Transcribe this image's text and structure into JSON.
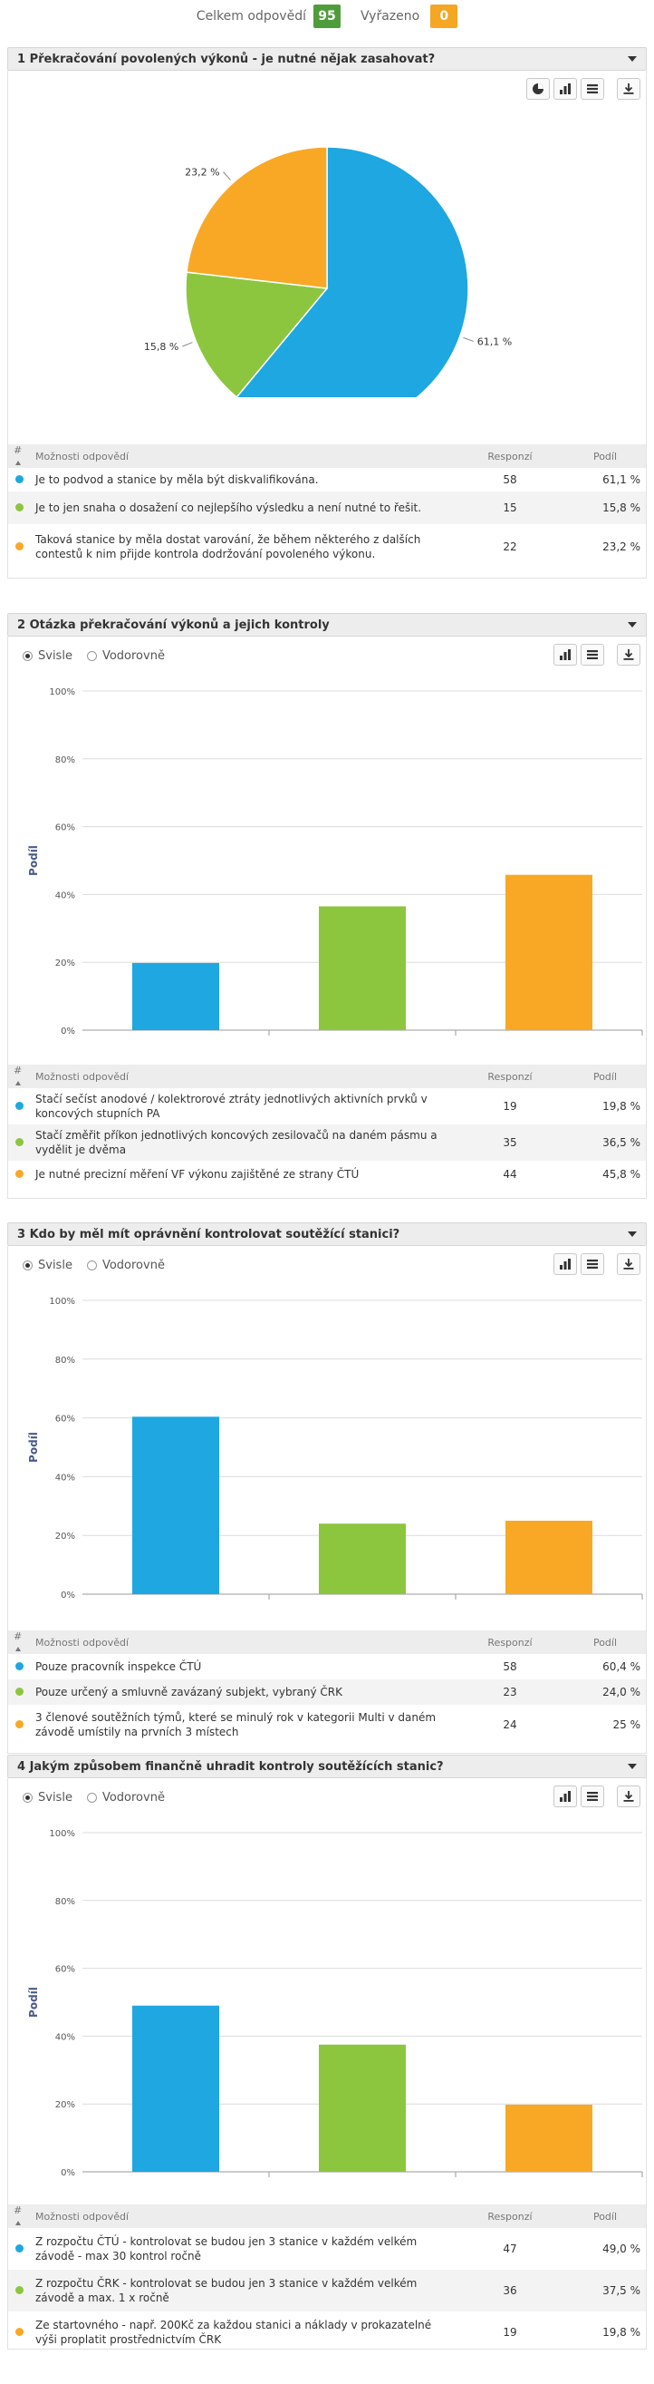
{
  "summary": {
    "total_label": "Celkem odpovědí",
    "total_value": "95",
    "excluded_label": "Vyřazeno",
    "excluded_value": "0"
  },
  "table_headers": {
    "num": "#",
    "options": "Možnosti odpovědí",
    "responses": "Responzí",
    "share": "Podíl"
  },
  "orientation": {
    "vertical": "Svisle",
    "horizontal": "Vodorovně"
  },
  "colors": {
    "blue": "#1ea7e1",
    "green": "#8cc63f",
    "orange": "#f9a825"
  },
  "questions": [
    {
      "title": "1 Překračování povolených výkonů - je nutné nějak zasahovat?",
      "answers": [
        {
          "text": "Je to podvod a stanice by měla být diskvalifikována.",
          "responses": "58",
          "share": "61,1 %"
        },
        {
          "text": "Je to jen snaha o dosažení co nejlepšího výsledku a není nutné to řešit.",
          "responses": "15",
          "share": "15,8 %"
        },
        {
          "text": "Taková stanice by měla dostat varování, že během některého z dalších contestů k nim přijde kontrola dodržování povoleného výkonu.",
          "responses": "22",
          "share": "23,2 %"
        }
      ]
    },
    {
      "title": "2 Otázka překračování výkonů a jejich kontroly",
      "answers": [
        {
          "text": "Stačí sečíst anodové / kolektrorové ztráty jednotlivých aktivních prvků v koncových stupních PA",
          "responses": "19",
          "share": "19,8 %"
        },
        {
          "text": "Stačí změřit příkon jednotlivých koncových zesilovačů na daném pásmu a vydělit je dvěma",
          "responses": "35",
          "share": "36,5 %"
        },
        {
          "text": "Je nutné precizní měření VF výkonu zajištěné ze strany ČTÚ",
          "responses": "44",
          "share": "45,8 %"
        }
      ]
    },
    {
      "title": "3 Kdo by měl mít oprávnění kontrolovat soutěžící stanici?",
      "answers": [
        {
          "text": "Pouze pracovník inspekce ČTÚ",
          "responses": "58",
          "share": "60,4 %"
        },
        {
          "text": "Pouze určený a smluvně zavázaný subjekt, vybraný ČRK",
          "responses": "23",
          "share": "24,0 %"
        },
        {
          "text": "3 členové soutěžních týmů, které se minulý rok v kategorii Multi v daném závodě umístily na prvních 3 místech",
          "responses": "24",
          "share": "25 %"
        }
      ]
    },
    {
      "title": "4 Jakým způsobem finančně uhradit kontroly soutěžících stanic?",
      "answers": [
        {
          "text": "Z rozpočtu ČTÚ - kontrolovat se budou jen 3 stanice v každém velkém závodě - max 30 kontrol ročně",
          "responses": "47",
          "share": "49,0 %"
        },
        {
          "text": "Z rozpočtu ČRK - kontrolovat se budou jen 3 stanice v každém velkém závodě a max. 1 x ročně",
          "responses": "36",
          "share": "37,5 %"
        },
        {
          "text": "Ze startovného - např. 200Kč za každou stanici a náklady v prokazatelné výši proplatit prostřednictvím ČRK",
          "responses": "19",
          "share": "19,8 %"
        }
      ]
    }
  ],
  "chart_data": [
    {
      "type": "pie",
      "categories": [
        "Je to podvod a stanice by měla být diskvalifikována.",
        "Je to jen snaha o dosažení co nejlepšího výsledku a není nutné to řešit.",
        "Taková stanice by měla dostat varování, že během některého z dalších contestů k nim přijde kontrola dodržování povoleného výkonu."
      ],
      "values": [
        61.1,
        15.8,
        23.2
      ],
      "data_labels": [
        "61,1 %",
        "15,8 %",
        "23,2 %"
      ]
    },
    {
      "type": "bar",
      "categories": [
        "Stačí sečíst anodové / kolektrorové ztráty jednotlivých aktivních prvků v koncových stupních PA",
        "Stačí změřit příkon jednotlivých koncových zesilovačů na daném pásmu a vydělit je dvěma",
        "Je nutné precizní měření VF výkonu zajištěné ze strany ČTÚ"
      ],
      "values": [
        19.8,
        36.5,
        45.8
      ],
      "ylabel": "Podíl",
      "ylim": [
        0,
        100
      ],
      "yticks": [
        "0%",
        "20%",
        "40%",
        "60%",
        "80%",
        "100%"
      ],
      "grid": true
    },
    {
      "type": "bar",
      "categories": [
        "Pouze pracovník inspekce ČTÚ",
        "Pouze určený a smluvně zavázaný subjekt, vybraný ČRK",
        "3 členové soutěžních týmů, které se minulý rok v kategorii Multi v daném závodě umístily na prvních 3 místech"
      ],
      "values": [
        60.4,
        24.0,
        25.0
      ],
      "ylabel": "Podíl",
      "ylim": [
        0,
        100
      ],
      "yticks": [
        "0%",
        "20%",
        "40%",
        "60%",
        "80%",
        "100%"
      ],
      "grid": true
    },
    {
      "type": "bar",
      "categories": [
        "Z rozpočtu ČTÚ - kontrolovat se budou jen 3 stanice v každém velkém závodě - max 30 kontrol ročně",
        "Z rozpočtu ČRK - kontrolovat se budou jen 3 stanice v každém velkém závodě a max. 1 x ročně",
        "Ze startovného - např. 200Kč za každou stanici a náklady v prokazatelné výši proplatit prostřednictvím ČRK"
      ],
      "values": [
        49.0,
        37.5,
        19.8
      ],
      "ylabel": "Podíl",
      "ylim": [
        0,
        100
      ],
      "yticks": [
        "0%",
        "20%",
        "40%",
        "60%",
        "80%",
        "100%"
      ],
      "grid": true
    }
  ]
}
